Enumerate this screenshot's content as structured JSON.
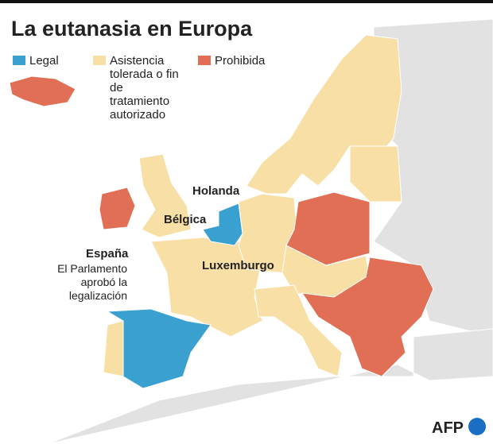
{
  "title": "La eutanasia en Europa",
  "legend": {
    "items": [
      {
        "label": "Legal",
        "color": "#3aa0cf"
      },
      {
        "label": "Asistencia tolerada o fin de tratamiento autorizado",
        "color": "#f8dfa5"
      },
      {
        "label": "Prohibida",
        "color": "#e06f55"
      }
    ]
  },
  "labels": {
    "holanda": "Holanda",
    "belgica": "Bélgica",
    "luxemburgo": "Luxemburgo",
    "espana": "España",
    "annotation": "El Parlamento aprobó la legalización"
  },
  "credit": "AFP"
}
